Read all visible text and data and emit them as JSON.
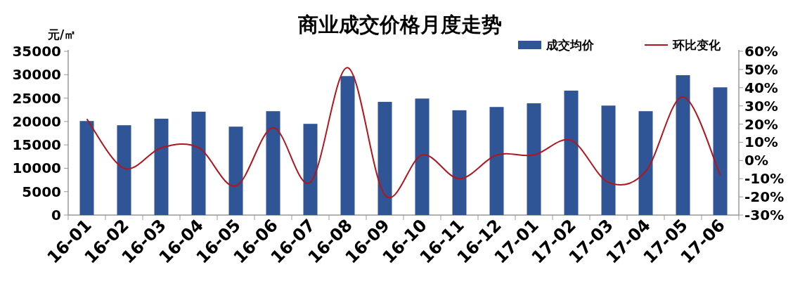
{
  "chart_data": {
    "type": "bar",
    "title": "商业成交价格月度走势",
    "ylabel": "元/㎡",
    "categories": [
      "16-01",
      "16-02",
      "16-03",
      "16-04",
      "16-05",
      "16-06",
      "16-07",
      "16-08",
      "16-09",
      "16-10",
      "16-11",
      "16-12",
      "17-01",
      "17-02",
      "17-03",
      "17-04",
      "17-05",
      "17-06"
    ],
    "series": [
      {
        "name": "成交均价",
        "color": "#2f5597",
        "values": [
          20100,
          19200,
          20600,
          22100,
          18900,
          22200,
          19500,
          29700,
          24200,
          24900,
          22400,
          23100,
          23900,
          26600,
          23400,
          22200,
          29900,
          27300
        ]
      },
      {
        "name": "环比变化",
        "type": "line",
        "axis": "y2",
        "color": "#b0161e",
        "values": [
          22.8,
          -4.3,
          7,
          7,
          -14,
          18,
          -12,
          51,
          -19,
          3,
          -10,
          3,
          3,
          11,
          -12,
          -6,
          35,
          -8
        ]
      }
    ],
    "ylim": [
      0,
      35000
    ],
    "yticks": [
      0,
      5000,
      10000,
      15000,
      20000,
      25000,
      30000,
      35000
    ],
    "y2lim": [
      -30,
      60
    ],
    "y2ticks": [
      {
        "value": -30,
        "label": "-30%"
      },
      {
        "value": -20,
        "label": "-20%"
      },
      {
        "value": -10,
        "label": "-10%"
      },
      {
        "value": 0,
        "label": "0%"
      },
      {
        "value": 10,
        "label": "10%"
      },
      {
        "value": 20,
        "label": "20%"
      },
      {
        "value": 30,
        "label": "30%"
      },
      {
        "value": 40,
        "label": "40%"
      },
      {
        "value": 50,
        "label": "50%"
      },
      {
        "value": 60,
        "label": "60%"
      }
    ],
    "legend": "top right",
    "grid": false,
    "marker": "none"
  }
}
